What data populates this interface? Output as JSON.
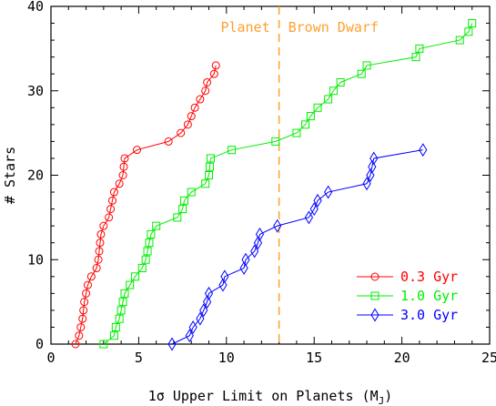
{
  "chart_data": {
    "type": "line",
    "xlabel": "1σ Upper Limit on Planets (M",
    "xlabel_sub": "J",
    "xlabel_close": ")",
    "ylabel": "# Stars",
    "xlim": [
      0,
      25
    ],
    "ylim": [
      0,
      40
    ],
    "xticks": [
      0,
      5,
      10,
      15,
      20,
      25
    ],
    "yticks": [
      0,
      10,
      20,
      30,
      40
    ],
    "grid": false,
    "legend_position": "lower-right",
    "divider": {
      "x": 13,
      "color": "#ff9f2f"
    },
    "region_labels": [
      {
        "text": "Planet",
        "side": "left",
        "color": "#ff9f2f"
      },
      {
        "text": "Brown Dwarf",
        "side": "right",
        "color": "#ff9f2f"
      }
    ],
    "series": [
      {
        "name": "0.3 Gyr",
        "color": "#ff0000",
        "marker": "circle",
        "points": [
          [
            1.4,
            0
          ],
          [
            1.6,
            1
          ],
          [
            1.7,
            2
          ],
          [
            1.8,
            3
          ],
          [
            1.85,
            4
          ],
          [
            1.9,
            5
          ],
          [
            2.0,
            6
          ],
          [
            2.1,
            7
          ],
          [
            2.3,
            8
          ],
          [
            2.6,
            9
          ],
          [
            2.7,
            10
          ],
          [
            2.75,
            11
          ],
          [
            2.8,
            12
          ],
          [
            2.85,
            13
          ],
          [
            3.0,
            14
          ],
          [
            3.3,
            15
          ],
          [
            3.4,
            16
          ],
          [
            3.5,
            17
          ],
          [
            3.6,
            18
          ],
          [
            3.9,
            19
          ],
          [
            4.1,
            20
          ],
          [
            4.15,
            21
          ],
          [
            4.2,
            22
          ],
          [
            4.9,
            23
          ],
          [
            6.7,
            24
          ],
          [
            7.4,
            25
          ],
          [
            7.8,
            26
          ],
          [
            8.0,
            27
          ],
          [
            8.2,
            28
          ],
          [
            8.5,
            29
          ],
          [
            8.8,
            30
          ],
          [
            8.9,
            31
          ],
          [
            9.3,
            32
          ],
          [
            9.4,
            33
          ]
        ]
      },
      {
        "name": "1.0 Gyr",
        "color": "#00ee00",
        "marker": "square",
        "points": [
          [
            3.0,
            0
          ],
          [
            3.6,
            1
          ],
          [
            3.7,
            2
          ],
          [
            3.9,
            3
          ],
          [
            4.0,
            4
          ],
          [
            4.1,
            5
          ],
          [
            4.2,
            6
          ],
          [
            4.5,
            7
          ],
          [
            4.8,
            8
          ],
          [
            5.2,
            9
          ],
          [
            5.4,
            10
          ],
          [
            5.5,
            11
          ],
          [
            5.6,
            12
          ],
          [
            5.7,
            13
          ],
          [
            6.0,
            14
          ],
          [
            7.2,
            15
          ],
          [
            7.5,
            16
          ],
          [
            7.6,
            17
          ],
          [
            8.0,
            18
          ],
          [
            8.8,
            19
          ],
          [
            9.0,
            20
          ],
          [
            9.05,
            21
          ],
          [
            9.1,
            22
          ],
          [
            10.3,
            23
          ],
          [
            12.8,
            24
          ],
          [
            14.0,
            25
          ],
          [
            14.5,
            26
          ],
          [
            14.8,
            27
          ],
          [
            15.2,
            28
          ],
          [
            15.8,
            29
          ],
          [
            16.1,
            30
          ],
          [
            16.5,
            31
          ],
          [
            17.7,
            32
          ],
          [
            18.0,
            33
          ],
          [
            20.8,
            34
          ],
          [
            21.0,
            35
          ],
          [
            23.3,
            36
          ],
          [
            23.8,
            37
          ],
          [
            24.0,
            38
          ]
        ]
      },
      {
        "name": "3.0 Gyr",
        "color": "#0000ff",
        "marker": "diamond",
        "points": [
          [
            6.9,
            0
          ],
          [
            7.9,
            1
          ],
          [
            8.1,
            2
          ],
          [
            8.5,
            3
          ],
          [
            8.7,
            4
          ],
          [
            8.9,
            5
          ],
          [
            9.0,
            6
          ],
          [
            9.8,
            7
          ],
          [
            9.9,
            8
          ],
          [
            11.0,
            9
          ],
          [
            11.1,
            10
          ],
          [
            11.6,
            11
          ],
          [
            11.8,
            12
          ],
          [
            11.9,
            13
          ],
          [
            12.9,
            14
          ],
          [
            14.7,
            15
          ],
          [
            15.0,
            16
          ],
          [
            15.2,
            17
          ],
          [
            15.8,
            18
          ],
          [
            18.0,
            19
          ],
          [
            18.2,
            20
          ],
          [
            18.3,
            21
          ],
          [
            18.4,
            22
          ],
          [
            21.2,
            23
          ]
        ]
      }
    ]
  }
}
